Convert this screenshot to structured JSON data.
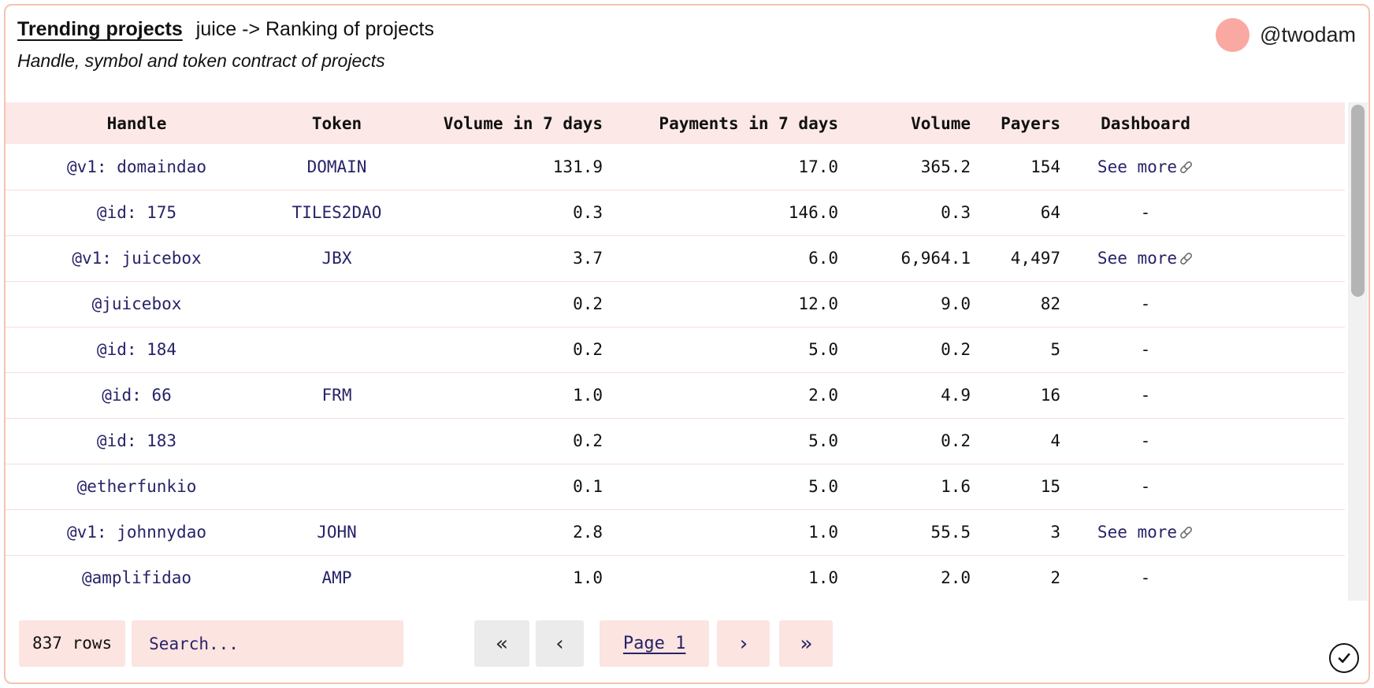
{
  "header": {
    "title": "Trending projects",
    "title_suffix": "juice -> Ranking of projects",
    "subtitle": "Handle, symbol and token contract of projects",
    "user": "@twodam"
  },
  "table": {
    "columns": [
      {
        "key": "handle",
        "label": "Handle",
        "align": "center"
      },
      {
        "key": "token",
        "label": "Token",
        "align": "center"
      },
      {
        "key": "volume_7d",
        "label": "Volume in 7 days",
        "align": "right"
      },
      {
        "key": "payments_7d",
        "label": "Payments in 7 days",
        "align": "right"
      },
      {
        "key": "volume",
        "label": "Volume",
        "align": "right"
      },
      {
        "key": "payers",
        "label": "Payers",
        "align": "right"
      },
      {
        "key": "dashboard",
        "label": "Dashboard",
        "align": "center"
      }
    ],
    "rows": [
      {
        "handle": "@v1: domaindao",
        "token": "DOMAIN",
        "volume_7d": "131.9",
        "payments_7d": "17.0",
        "volume": "365.2",
        "payers": "154",
        "dashboard": "See more",
        "has_link": true
      },
      {
        "handle": "@id: 175",
        "token": "TILES2DAO",
        "volume_7d": "0.3",
        "payments_7d": "146.0",
        "volume": "0.3",
        "payers": "64",
        "dashboard": "-",
        "has_link": false
      },
      {
        "handle": "@v1: juicebox",
        "token": "JBX",
        "volume_7d": "3.7",
        "payments_7d": "6.0",
        "volume": "6,964.1",
        "payers": "4,497",
        "dashboard": "See more",
        "has_link": true
      },
      {
        "handle": "@juicebox",
        "token": "",
        "volume_7d": "0.2",
        "payments_7d": "12.0",
        "volume": "9.0",
        "payers": "82",
        "dashboard": "-",
        "has_link": false
      },
      {
        "handle": "@id: 184",
        "token": "",
        "volume_7d": "0.2",
        "payments_7d": "5.0",
        "volume": "0.2",
        "payers": "5",
        "dashboard": "-",
        "has_link": false
      },
      {
        "handle": "@id: 66",
        "token": "FRM",
        "volume_7d": "1.0",
        "payments_7d": "2.0",
        "volume": "4.9",
        "payers": "16",
        "dashboard": "-",
        "has_link": false
      },
      {
        "handle": "@id: 183",
        "token": "",
        "volume_7d": "0.2",
        "payments_7d": "5.0",
        "volume": "0.2",
        "payers": "4",
        "dashboard": "-",
        "has_link": false
      },
      {
        "handle": "@etherfunkio",
        "token": "",
        "volume_7d": "0.1",
        "payments_7d": "5.0",
        "volume": "1.6",
        "payers": "15",
        "dashboard": "-",
        "has_link": false
      },
      {
        "handle": "@v1: johnnydao",
        "token": "JOHN",
        "volume_7d": "2.8",
        "payments_7d": "1.0",
        "volume": "55.5",
        "payers": "3",
        "dashboard": "See more",
        "has_link": true
      },
      {
        "handle": "@amplifidao",
        "token": "AMP",
        "volume_7d": "1.0",
        "payments_7d": "1.0",
        "volume": "2.0",
        "payers": "2",
        "dashboard": "-",
        "has_link": false
      }
    ]
  },
  "footer": {
    "row_count": "837 rows",
    "search_placeholder": "Search...",
    "pagination": {
      "first": "«",
      "prev": "‹",
      "current": "Page 1",
      "next": "›",
      "last": "»"
    }
  },
  "icons": {
    "dashboard_link": "chain-link-icon",
    "status": "check-circle-icon",
    "avatar": "avatar-circle"
  },
  "colors": {
    "card_border": "#f5c3b0",
    "table_header_bg": "#fce9e7",
    "row_separator": "#f9dcd8",
    "pink_chip_bg": "#fce4e1",
    "disabled_chip_bg": "#ebebeb",
    "link_text": "#272368",
    "avatar_bg": "#f9a8a2",
    "scroll_thumb": "#b4b4b4",
    "scroll_track": "#f1f1f1"
  }
}
